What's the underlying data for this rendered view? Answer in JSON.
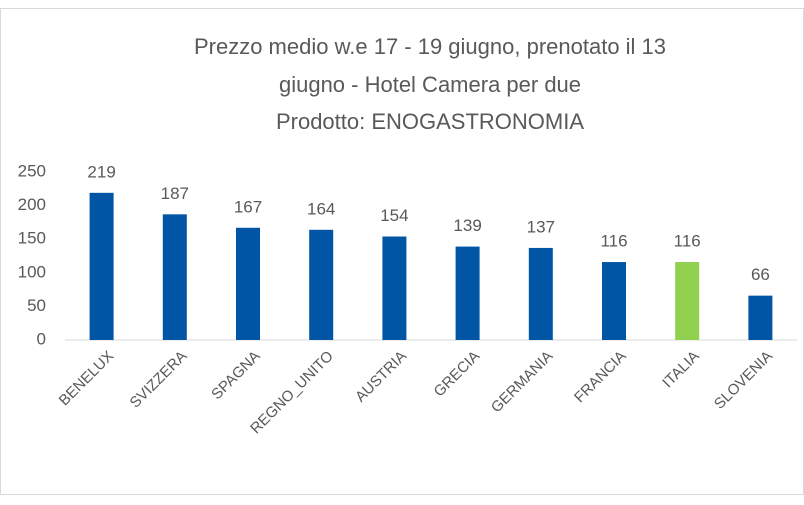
{
  "chart_data": {
    "type": "bar",
    "title": [
      "Prezzo medio w.e 17 - 19 giugno, prenotato il 13",
      "giugno  - Hotel Camera per due",
      "Prodotto: ENOGASTRONOMIA"
    ],
    "categories": [
      "BENELUX",
      "SVIZZERA",
      "SPAGNA",
      "REGNO_UNITO",
      "AUSTRIA",
      "GRECIA",
      "GERMANIA",
      "FRANCIA",
      "ITALIA",
      "SLOVENIA"
    ],
    "values": [
      219,
      187,
      167,
      164,
      154,
      139,
      137,
      116,
      116,
      66
    ],
    "colors": [
      "#0055a5",
      "#0055a5",
      "#0055a5",
      "#0055a5",
      "#0055a5",
      "#0055a5",
      "#0055a5",
      "#0055a5",
      "#92d050",
      "#0055a5"
    ],
    "ylim": [
      0,
      250
    ],
    "yticks": [
      0,
      50,
      100,
      150,
      200,
      250
    ],
    "grid": false
  }
}
